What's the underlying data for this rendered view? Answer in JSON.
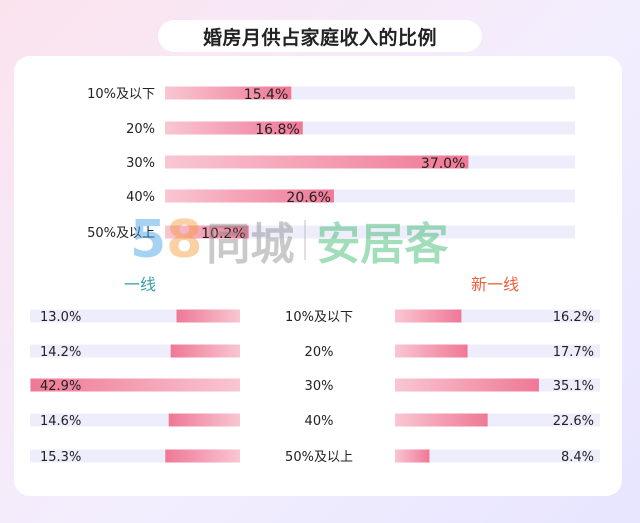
{
  "title": "婚房月供占家庭收入的比例",
  "watermark": {
    "num_a": "5",
    "num_b": "8",
    "text_a": "同城",
    "text_b": "安居客"
  },
  "colors": {
    "bar_light": "#f8c1ce",
    "bar_dark": "#f07a98",
    "track": "#eeedfc",
    "tier1_label": "#3a9ea8",
    "newtier1_label": "#e8613c",
    "text": "#222222"
  },
  "chart_data": [
    {
      "type": "bar",
      "title": "婚房月供占家庭收入的比例",
      "orientation": "horizontal",
      "categories": [
        "10%及以下",
        "20%",
        "30%",
        "40%",
        "50%及以上"
      ],
      "values": [
        15.4,
        16.8,
        37.0,
        20.6,
        10.2
      ],
      "value_labels": [
        "15.4%",
        "16.8%",
        "37.0%",
        "20.6%",
        "10.2%"
      ],
      "xlim": [
        0,
        50
      ]
    },
    {
      "type": "bar",
      "title": "一线",
      "orientation": "horizontal",
      "direction": "right-to-left",
      "categories": [
        "10%及以下",
        "20%",
        "30%",
        "40%",
        "50%及以上"
      ],
      "values": [
        13.0,
        14.2,
        42.9,
        14.6,
        15.3
      ],
      "value_labels": [
        "13.0%",
        "14.2%",
        "42.9%",
        "14.6%",
        "15.3%"
      ],
      "xlim": [
        0,
        43
      ]
    },
    {
      "type": "bar",
      "title": "新一线",
      "orientation": "horizontal",
      "categories": [
        "10%及以下",
        "20%",
        "30%",
        "40%",
        "50%及以上"
      ],
      "values": [
        16.2,
        17.7,
        35.1,
        22.6,
        8.4
      ],
      "value_labels": [
        "16.2%",
        "17.7%",
        "35.1%",
        "22.6%",
        "8.4%"
      ],
      "xlim": [
        0,
        50
      ]
    }
  ]
}
